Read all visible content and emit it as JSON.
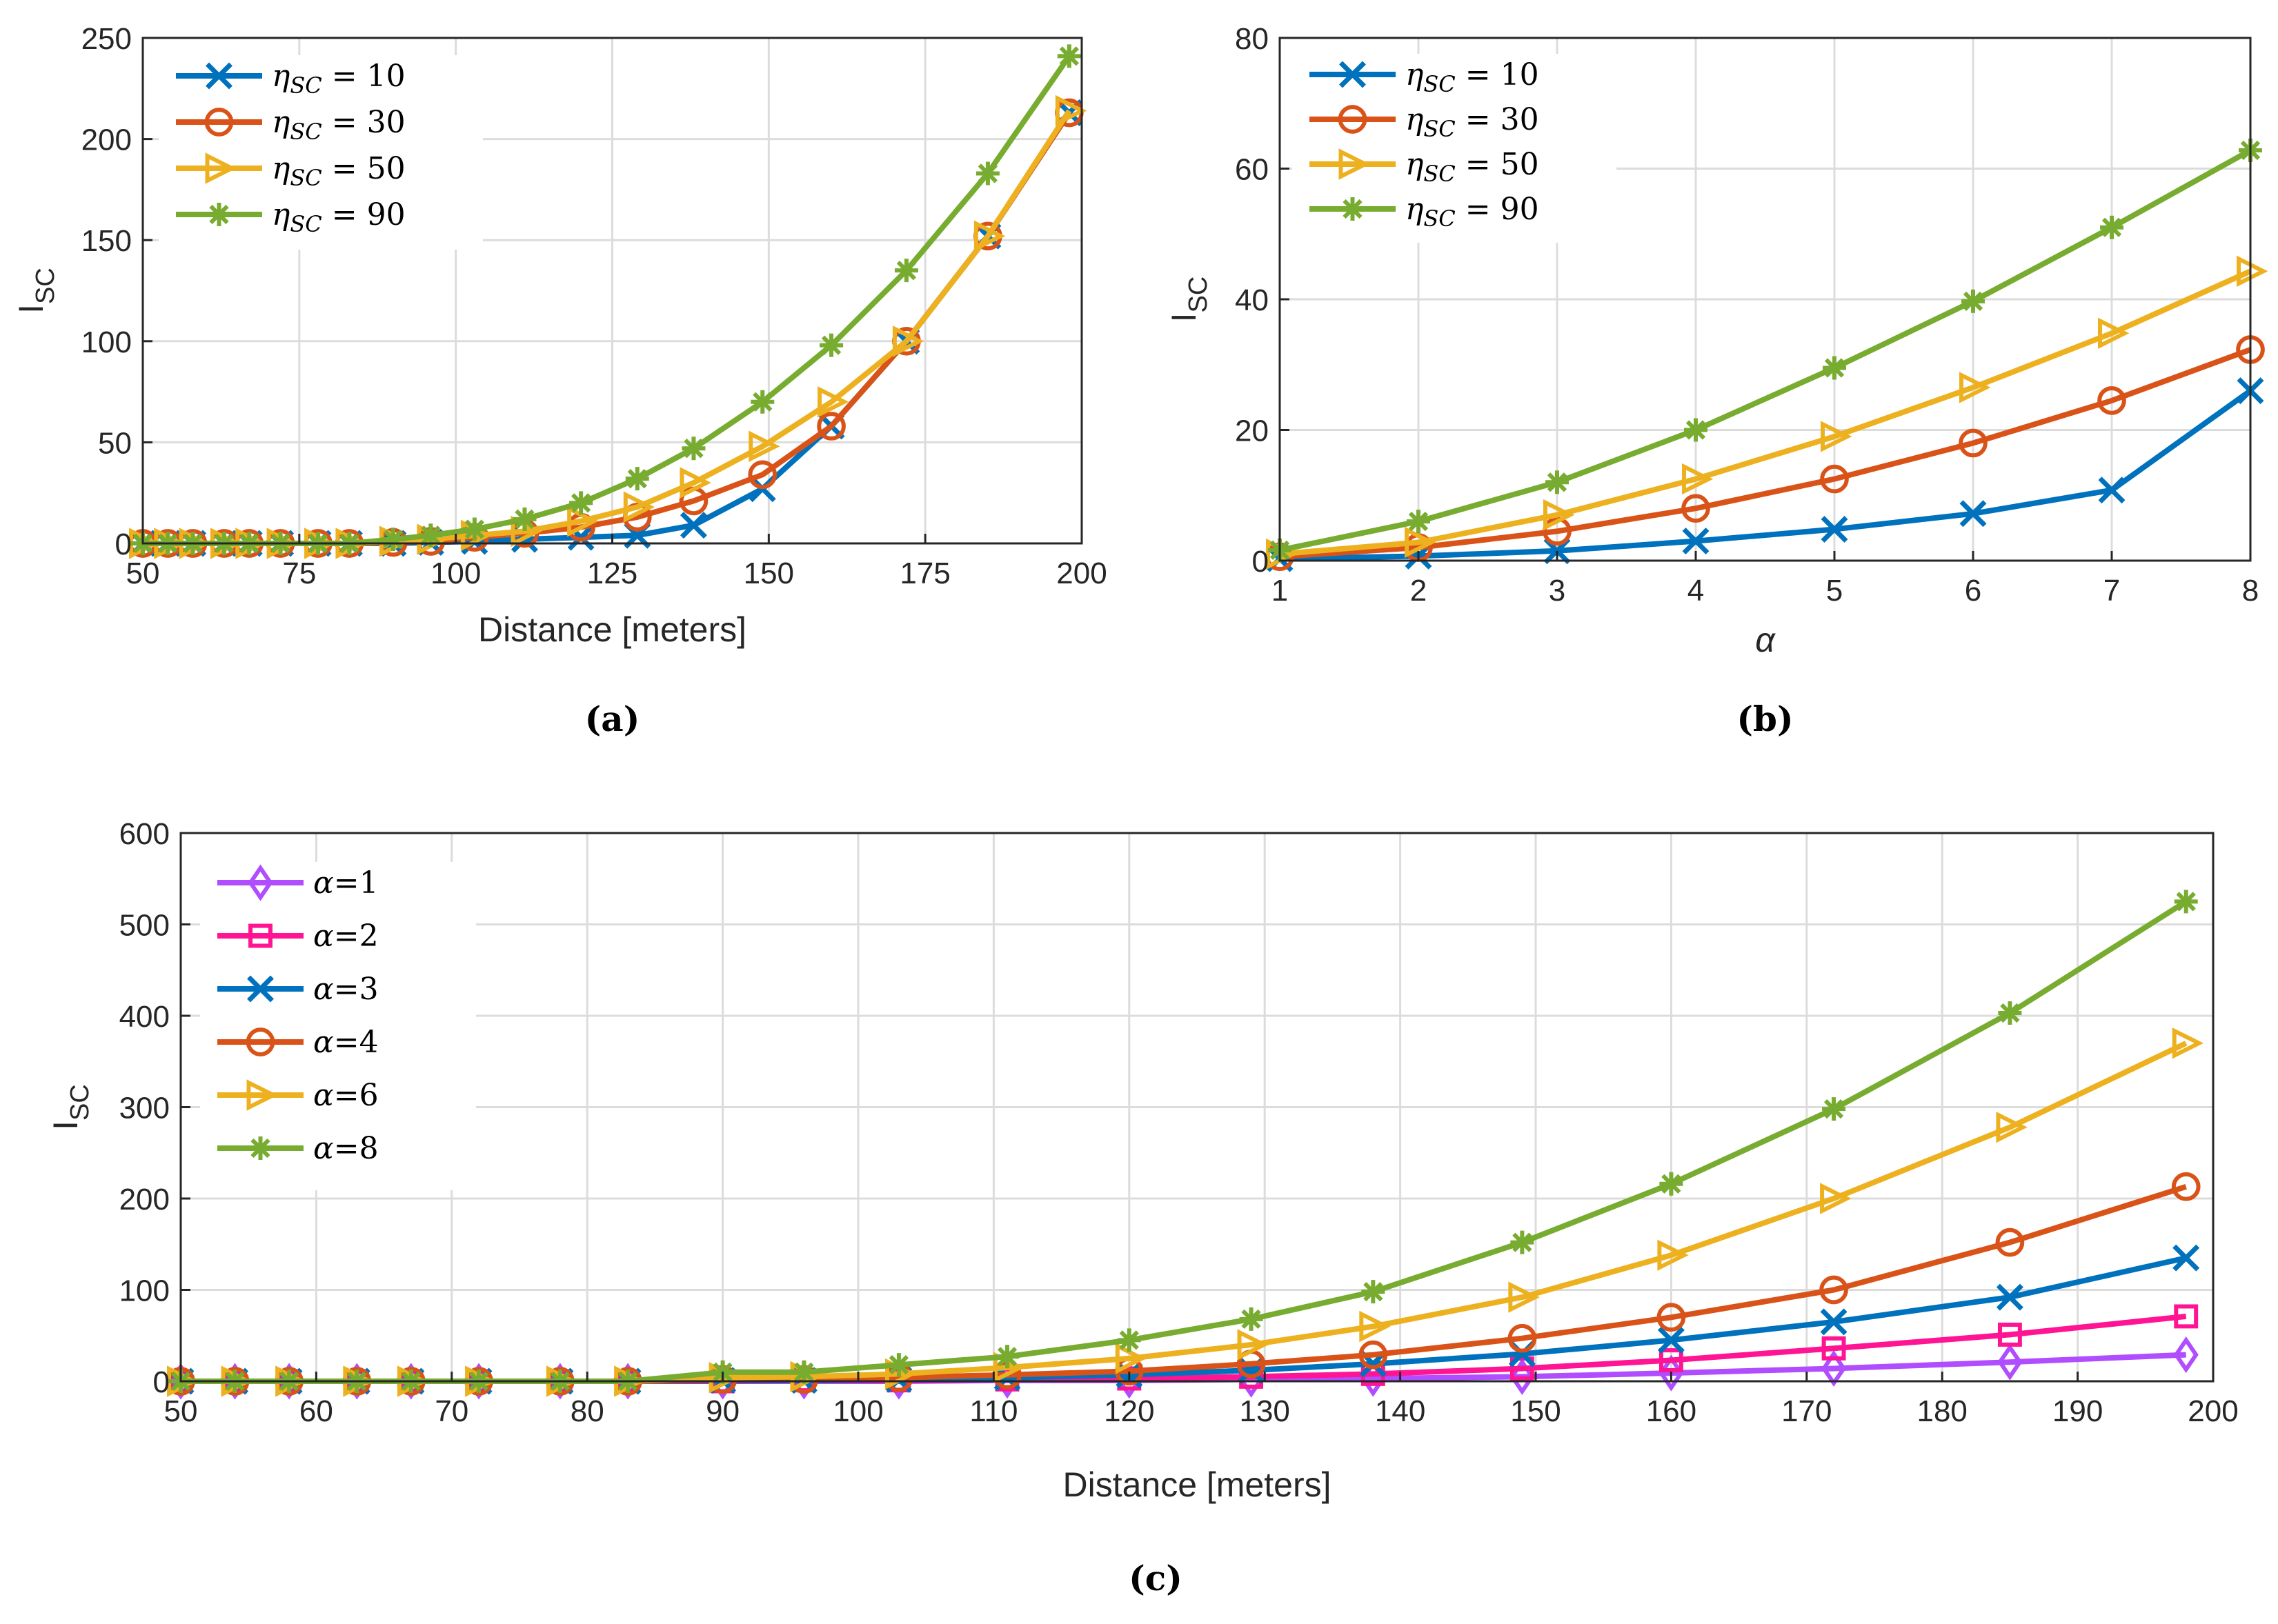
{
  "chart_data": [
    {
      "id": "a",
      "type": "line",
      "caption": "(a)",
      "xlabel": "Distance [meters]",
      "ylabel": "I_SC",
      "xlim": [
        50,
        200
      ],
      "ylim": [
        0,
        250
      ],
      "xticks": [
        50,
        75,
        100,
        125,
        150,
        175,
        200
      ],
      "yticks": [
        0,
        50,
        100,
        150,
        200,
        250
      ],
      "grid": true,
      "legend_position": "top-left",
      "x": [
        50,
        54,
        58,
        63,
        67,
        72,
        78,
        83,
        90,
        96,
        103,
        111,
        120,
        129,
        138,
        149,
        160,
        172,
        185,
        198
      ],
      "series": [
        {
          "name": "ηSC = 10",
          "sym": "η",
          "sub": "SC",
          "rhs": " = 10",
          "color": "#0072BD",
          "marker": "x",
          "values": [
            0,
            0,
            0,
            0,
            0,
            0,
            0,
            0,
            0,
            0.5,
            1,
            2,
            3,
            4,
            9,
            27,
            58,
            100,
            152,
            213
          ]
        },
        {
          "name": "ηSC = 30",
          "sym": "η",
          "sub": "SC",
          "rhs": " = 30",
          "color": "#D95319",
          "marker": "o",
          "values": [
            0,
            0,
            0,
            0,
            0,
            0,
            0,
            0,
            0.5,
            1,
            3,
            5,
            8,
            13,
            21,
            34,
            58,
            100,
            152,
            213
          ]
        },
        {
          "name": "ηSC = 50",
          "sym": "η",
          "sub": "SC",
          "rhs": " = 50",
          "color": "#EDB120",
          "marker": ">",
          "values": [
            0,
            0,
            0,
            0,
            0,
            0,
            0,
            0,
            1,
            2,
            4,
            6,
            11,
            18,
            30,
            48,
            70,
            100,
            152,
            214
          ]
        },
        {
          "name": "ηSC = 90",
          "sym": "η",
          "sub": "SC",
          "rhs": " = 90",
          "color": "#77AC30",
          "marker": "*",
          "values": [
            0,
            0,
            0,
            0,
            0,
            0,
            0,
            0,
            2,
            4,
            7,
            12,
            20,
            32,
            47,
            70,
            98,
            135,
            183,
            241
          ]
        }
      ]
    },
    {
      "id": "b",
      "type": "line",
      "caption": "(b)",
      "xlabel": "α",
      "ylabel": "I_SC",
      "xlim": [
        1,
        8
      ],
      "ylim": [
        0,
        80
      ],
      "xticks": [
        1,
        2,
        3,
        4,
        5,
        6,
        7,
        8
      ],
      "yticks": [
        0,
        20,
        40,
        60,
        80
      ],
      "grid": true,
      "legend_position": "top-left",
      "x": [
        1,
        2,
        3,
        4,
        5,
        6,
        7,
        8
      ],
      "series": [
        {
          "name": "ηSC = 10",
          "sym": "η",
          "sub": "SC",
          "rhs": " = 10",
          "color": "#0072BD",
          "marker": "x",
          "values": [
            0.3,
            0.7,
            1.5,
            3,
            4.8,
            7.2,
            10.8,
            26
          ]
        },
        {
          "name": "ηSC = 30",
          "sym": "η",
          "sub": "SC",
          "rhs": " = 30",
          "color": "#D95319",
          "marker": "o",
          "values": [
            0.6,
            2,
            4.5,
            8,
            12.5,
            18,
            24.5,
            32.3
          ]
        },
        {
          "name": "ηSC = 50",
          "sym": "η",
          "sub": "SC",
          "rhs": " = 50",
          "color": "#EDB120",
          "marker": ">",
          "values": [
            1,
            2.8,
            7,
            12.5,
            19,
            26.5,
            34.8,
            44.3
          ]
        },
        {
          "name": "ηSC = 90",
          "sym": "η",
          "sub": "SC",
          "rhs": " = 90",
          "color": "#77AC30",
          "marker": "*",
          "values": [
            1.6,
            6,
            12,
            20,
            29.5,
            39.7,
            51,
            62.8
          ]
        }
      ]
    },
    {
      "id": "c",
      "type": "line",
      "caption": "(c)",
      "xlabel": "Distance [meters]",
      "ylabel": "I_SC",
      "xlim": [
        50,
        200
      ],
      "ylim": [
        0,
        600
      ],
      "xticks": [
        50,
        60,
        70,
        80,
        90,
        100,
        110,
        120,
        130,
        140,
        150,
        160,
        170,
        180,
        190,
        200
      ],
      "yticks": [
        0,
        100,
        200,
        300,
        400,
        500,
        600
      ],
      "grid": true,
      "legend_position": "top-left",
      "x": [
        50,
        54,
        58,
        63,
        67,
        72,
        78,
        83,
        90,
        96,
        103,
        111,
        120,
        129,
        138,
        149,
        160,
        172,
        185,
        198
      ],
      "series": [
        {
          "name": "α=1",
          "sym": "α",
          "sub": "",
          "rhs": "=1",
          "color": "#B04DFF",
          "marker": "d",
          "values": [
            0,
            0,
            0,
            0,
            0,
            0,
            0,
            0,
            0,
            0,
            0,
            1,
            1,
            2,
            3,
            5,
            9,
            14,
            21,
            29
          ]
        },
        {
          "name": "α=2",
          "sym": "α",
          "sub": "",
          "rhs": "=2",
          "color": "#FF1493",
          "marker": "s",
          "values": [
            0,
            0,
            0,
            0,
            0,
            0,
            0,
            0,
            0,
            1,
            1,
            2,
            3,
            5,
            8,
            14,
            23,
            36,
            51,
            71
          ]
        },
        {
          "name": "α=3",
          "sym": "α",
          "sub": "",
          "rhs": "=3",
          "color": "#0072BD",
          "marker": "x",
          "values": [
            0,
            0,
            0,
            0,
            0,
            0,
            0,
            0,
            1,
            1,
            2,
            4,
            7,
            12,
            19,
            30,
            45,
            65,
            92,
            135
          ]
        },
        {
          "name": "α=4",
          "sym": "α",
          "sub": "",
          "rhs": "=4",
          "color": "#D95319",
          "marker": "o",
          "values": [
            0,
            0,
            0,
            0,
            0,
            0,
            0,
            0,
            2,
            2,
            4,
            7,
            11,
            19,
            29,
            47,
            70,
            100,
            152,
            213
          ]
        },
        {
          "name": "α=6",
          "sym": "α",
          "sub": "",
          "rhs": "=6",
          "color": "#EDB120",
          "marker": ">",
          "values": [
            0,
            0,
            0,
            0,
            0,
            0,
            0,
            0,
            4,
            5,
            8,
            15,
            25,
            40,
            60,
            92,
            138,
            200,
            278,
            370
          ]
        },
        {
          "name": "α=8",
          "sym": "α",
          "sub": "",
          "rhs": "=8",
          "color": "#77AC30",
          "marker": "*",
          "values": [
            0,
            0,
            0,
            0,
            0,
            0,
            0,
            0,
            10,
            10,
            18,
            27,
            45,
            68,
            98,
            152,
            216,
            298,
            403,
            525
          ]
        }
      ]
    }
  ]
}
